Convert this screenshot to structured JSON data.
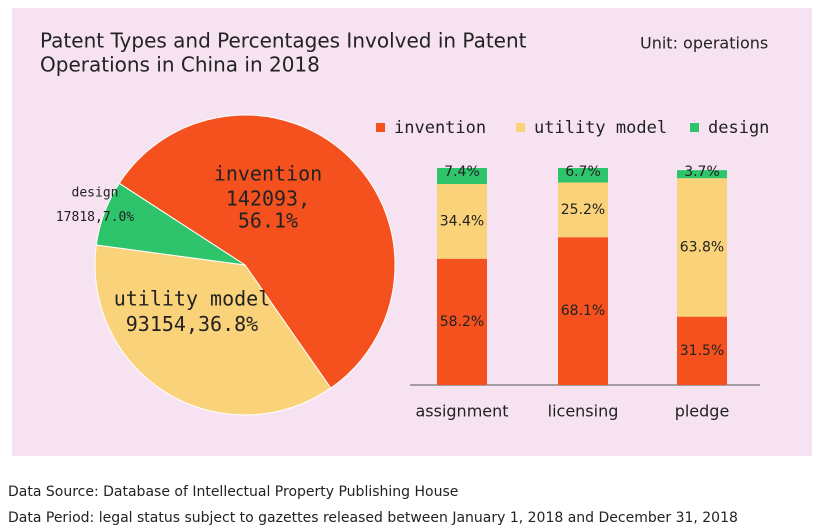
{
  "header": {
    "title_lines": [
      "Patent Types and Percentages Involved in Patent",
      "Operations in China in 2018"
    ],
    "unit": "Unit: operations"
  },
  "chart_data": [
    {
      "type": "pie",
      "categories": [
        "invention",
        "utility model",
        "design"
      ],
      "values": [
        142093,
        93154,
        17818
      ],
      "value_labels": [
        "142093,",
        "93154,",
        "17818,"
      ],
      "percentages": [
        56.1,
        36.8,
        7.0
      ],
      "percentage_labels": [
        "56.1%",
        "36.8%",
        "7.0%"
      ],
      "colors": [
        "#f4511e",
        "#fad27a",
        "#2ec46b"
      ]
    },
    {
      "type": "stacked_bar",
      "categories": [
        "assignment",
        "licensing",
        "pledge"
      ],
      "ylim": [
        0,
        100
      ],
      "legend": "top",
      "series": [
        {
          "name": "invention",
          "color": "#f4511e",
          "values": [
            58.2,
            68.1,
            31.5
          ],
          "value_labels": [
            "58.2%",
            "68.1%",
            "31.5%"
          ]
        },
        {
          "name": "utility model",
          "color": "#fad27a",
          "values": [
            34.4,
            25.2,
            63.8
          ],
          "value_labels": [
            "34.4%",
            "25.2%",
            "63.8%"
          ]
        },
        {
          "name": "design",
          "color": "#2ec46b",
          "values": [
            7.4,
            6.7,
            3.7
          ],
          "value_labels": [
            "7.4%",
            "6.7%",
            "3.7%"
          ]
        }
      ]
    }
  ],
  "footer": [
    "Data Source: Database of Intellectual Property Publishing House",
    "Data Period: legal status subject to gazettes released between January 1, 2018 and December 31, 2018"
  ]
}
